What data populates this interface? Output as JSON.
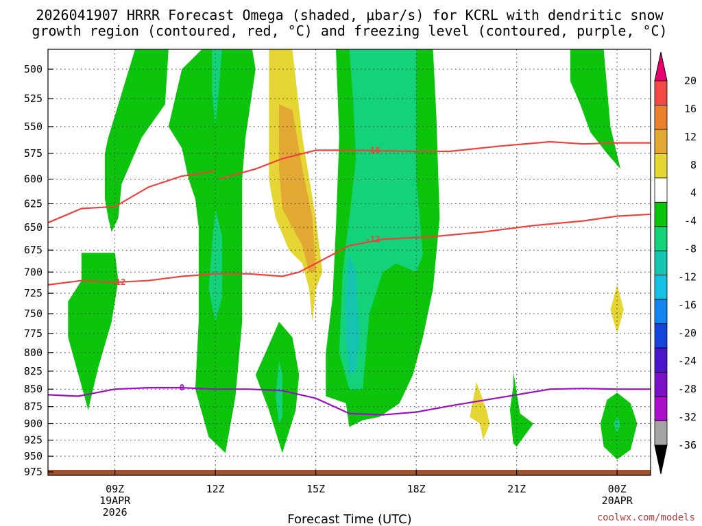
{
  "chart_data": {
    "type": "heatmap",
    "title_line1": "2026041907 HRRR Forecast Omega (shaded, μbar/s) for KCRL with dendritic snow",
    "title_line2": "growth region (contoured, red, °C) and freezing level (contoured, purple, °C)",
    "xlabel": "Forecast Time (UTC)",
    "watermark": "coolwx.com/models",
    "x_range_hours": [
      7,
      25
    ],
    "x_ticks": [
      {
        "h": 9,
        "label": "09Z",
        "sub1": "19APR",
        "sub2": "2026"
      },
      {
        "h": 12,
        "label": "12Z",
        "sub1": "",
        "sub2": ""
      },
      {
        "h": 15,
        "label": "15Z",
        "sub1": "",
        "sub2": ""
      },
      {
        "h": 18,
        "label": "18Z",
        "sub1": "",
        "sub2": ""
      },
      {
        "h": 21,
        "label": "21Z",
        "sub1": "",
        "sub2": ""
      },
      {
        "h": 24,
        "label": "00Z",
        "sub1": "20APR",
        "sub2": ""
      }
    ],
    "y_ticks_hPa": [
      500,
      525,
      550,
      575,
      600,
      625,
      650,
      675,
      700,
      725,
      750,
      775,
      800,
      825,
      850,
      875,
      900,
      925,
      950,
      975
    ],
    "colorbar": {
      "labels": [
        "20",
        "16",
        "12",
        "8",
        "4",
        "-4",
        "-8",
        "-12",
        "-16",
        "-20",
        "-24",
        "-28",
        "-32",
        "-36"
      ],
      "colors": [
        "#e8006e",
        "#f14a46",
        "#ea7f2e",
        "#e3a734",
        "#e6d633",
        "#ffffff",
        "#0bc40b",
        "#14d27a",
        "#15c3b1",
        "#16bfe4",
        "#1685f0",
        "#1444da",
        "#4b15c9",
        "#7b12c6",
        "#a90fc6",
        "#a3a3a3",
        "#000000"
      ]
    },
    "contours": [
      {
        "name": "-18",
        "color": "#f0403a",
        "label_h": 16.7,
        "points": [
          [
            12.1,
            600
          ],
          [
            13.2,
            590
          ],
          [
            14.0,
            580
          ],
          [
            15.0,
            572
          ],
          [
            16.0,
            572
          ],
          [
            18.0,
            573
          ],
          [
            19.0,
            573
          ],
          [
            20.5,
            568
          ],
          [
            22.0,
            564
          ],
          [
            23.0,
            566
          ],
          [
            24.0,
            565
          ],
          [
            25.0,
            565
          ]
        ]
      },
      {
        "name": "-12",
        "color": "#f0403a",
        "label_h": 16.7,
        "points": [
          [
            7.0,
            645
          ],
          [
            8.0,
            630
          ],
          [
            9.0,
            628
          ],
          [
            10.0,
            608
          ],
          [
            11.0,
            597
          ],
          [
            12.0,
            592
          ]
        ]
      },
      {
        "name": "-12",
        "color": "#f0403a",
        "label_h": 16.7,
        "points": [
          [
            15.0,
            690
          ],
          [
            16.0,
            670
          ],
          [
            17.0,
            663
          ],
          [
            18.5,
            660
          ],
          [
            20.0,
            655
          ],
          [
            21.5,
            648
          ],
          [
            23.0,
            643
          ],
          [
            24.0,
            638
          ],
          [
            25.0,
            636
          ]
        ]
      },
      {
        "name": "-12",
        "color": "#f0403a",
        "label_h": 9.1,
        "points": [
          [
            7.0,
            715
          ],
          [
            8.0,
            710
          ],
          [
            9.0,
            712
          ],
          [
            10.0,
            710
          ],
          [
            11.0,
            705
          ],
          [
            12.0,
            702
          ],
          [
            13.0,
            702
          ],
          [
            14.0,
            705
          ],
          [
            14.5,
            700
          ],
          [
            15.0,
            690
          ]
        ]
      },
      {
        "name": "0",
        "color": "#9b0ec6",
        "label_h": 11.0,
        "points": [
          [
            7.0,
            858
          ],
          [
            7.9,
            860
          ],
          [
            9.0,
            850
          ],
          [
            10.0,
            848
          ],
          [
            11.0,
            848
          ],
          [
            12.0,
            850
          ],
          [
            13.0,
            850
          ],
          [
            14.0,
            852
          ],
          [
            15.0,
            863
          ],
          [
            16.0,
            885
          ],
          [
            17.0,
            887
          ],
          [
            18.0,
            883
          ],
          [
            19.0,
            874
          ],
          [
            20.0,
            866
          ],
          [
            21.0,
            858
          ],
          [
            22.0,
            850
          ],
          [
            23.0,
            849
          ],
          [
            24.0,
            850
          ],
          [
            25.0,
            850
          ]
        ]
      }
    ],
    "omega_regions": [
      {
        "name": "green-left-upper",
        "level": "-4",
        "points": [
          [
            8.7,
            575
          ],
          [
            8.8,
            560
          ],
          [
            9.6,
            470
          ],
          [
            10.6,
            470
          ],
          [
            10.5,
            530
          ],
          [
            9.8,
            560
          ],
          [
            9.2,
            605
          ],
          [
            9.1,
            640
          ],
          [
            8.9,
            655
          ],
          [
            8.8,
            640
          ],
          [
            8.7,
            620
          ]
        ]
      },
      {
        "name": "green-left-lower",
        "level": "-4",
        "points": [
          [
            8.0,
            678
          ],
          [
            9.0,
            678
          ],
          [
            9.1,
            710
          ],
          [
            8.9,
            760
          ],
          [
            8.5,
            820
          ],
          [
            8.2,
            880
          ],
          [
            8.0,
            845
          ],
          [
            7.6,
            780
          ],
          [
            7.6,
            735
          ],
          [
            8.0,
            710
          ]
        ]
      },
      {
        "name": "green-12z-column",
        "level": "-4",
        "points": [
          [
            11.6,
            470
          ],
          [
            12.8,
            470
          ],
          [
            12.8,
            500
          ],
          [
            12.8,
            600
          ],
          [
            12.7,
            650
          ],
          [
            12.8,
            760
          ],
          [
            12.6,
            860
          ],
          [
            12.3,
            945
          ],
          [
            11.8,
            920
          ],
          [
            11.4,
            850
          ],
          [
            11.5,
            760
          ],
          [
            11.5,
            650
          ],
          [
            11.4,
            620
          ],
          [
            11.2,
            600
          ],
          [
            11.0,
            570
          ],
          [
            10.6,
            550
          ],
          [
            11.0,
            500
          ]
        ]
      },
      {
        "name": "green-13z",
        "level": "-4",
        "points": [
          [
            12.6,
            470
          ],
          [
            13.1,
            470
          ],
          [
            13.2,
            500
          ],
          [
            12.9,
            560
          ],
          [
            12.8,
            600
          ],
          [
            12.8,
            700
          ],
          [
            12.8,
            760
          ],
          [
            12.6,
            700
          ],
          [
            12.6,
            600
          ]
        ]
      },
      {
        "name": "green-14z-blob",
        "level": "-4",
        "points": [
          [
            13.5,
            800
          ],
          [
            13.9,
            760
          ],
          [
            14.3,
            780
          ],
          [
            14.5,
            830
          ],
          [
            14.4,
            880
          ],
          [
            14.0,
            945
          ],
          [
            13.6,
            880
          ],
          [
            13.2,
            830
          ]
        ]
      },
      {
        "name": "green-16z-column",
        "level": "-4",
        "points": [
          [
            15.6,
            470
          ],
          [
            18.5,
            470
          ],
          [
            18.6,
            540
          ],
          [
            18.7,
            640
          ],
          [
            18.5,
            720
          ],
          [
            18.2,
            780
          ],
          [
            17.9,
            830
          ],
          [
            17.5,
            870
          ],
          [
            16.9,
            890
          ],
          [
            16.4,
            895
          ],
          [
            16.0,
            905
          ],
          [
            15.9,
            870
          ],
          [
            15.3,
            860
          ],
          [
            15.3,
            800
          ],
          [
            15.5,
            730
          ],
          [
            15.6,
            650
          ],
          [
            15.7,
            560
          ]
        ]
      },
      {
        "name": "green-right-upper",
        "level": "-4",
        "points": [
          [
            22.6,
            470
          ],
          [
            23.6,
            470
          ],
          [
            23.8,
            550
          ],
          [
            24.1,
            590
          ],
          [
            23.7,
            575
          ],
          [
            23.2,
            555
          ],
          [
            22.9,
            530
          ],
          [
            22.6,
            510
          ]
        ]
      },
      {
        "name": "green-21z",
        "level": "-4",
        "points": [
          [
            20.9,
            825
          ],
          [
            21.1,
            885
          ],
          [
            21.5,
            900
          ],
          [
            21.0,
            935
          ],
          [
            20.9,
            930
          ],
          [
            20.8,
            880
          ],
          [
            20.9,
            845
          ]
        ]
      },
      {
        "name": "green-00z-blob",
        "level": "-4",
        "points": [
          [
            24.0,
            855
          ],
          [
            24.4,
            870
          ],
          [
            24.6,
            900
          ],
          [
            24.4,
            940
          ],
          [
            24.0,
            955
          ],
          [
            23.6,
            935
          ],
          [
            23.5,
            900
          ],
          [
            23.7,
            865
          ]
        ]
      },
      {
        "name": "teal-12z",
        "level": "-8",
        "points": [
          [
            11.9,
            470
          ],
          [
            12.2,
            470
          ],
          [
            12.1,
            520
          ],
          [
            12.0,
            550
          ],
          [
            11.9,
            520
          ]
        ]
      },
      {
        "name": "teal-12z-mid",
        "level": "-8",
        "points": [
          [
            12.0,
            630
          ],
          [
            12.2,
            660
          ],
          [
            12.2,
            730
          ],
          [
            12.0,
            760
          ],
          [
            11.8,
            720
          ],
          [
            11.9,
            670
          ]
        ]
      },
      {
        "name": "teal-16z",
        "level": "-8",
        "points": [
          [
            16.0,
            470
          ],
          [
            18.0,
            470
          ],
          [
            18.0,
            600
          ],
          [
            18.2,
            680
          ],
          [
            18.0,
            700
          ],
          [
            17.4,
            690
          ],
          [
            17.0,
            700
          ],
          [
            16.6,
            750
          ],
          [
            16.4,
            850
          ],
          [
            16.0,
            850
          ],
          [
            15.7,
            800
          ],
          [
            15.8,
            700
          ],
          [
            16.0,
            640
          ],
          [
            16.2,
            580
          ],
          [
            16.1,
            520
          ]
        ]
      },
      {
        "name": "teal-14z",
        "level": "-8",
        "points": [
          [
            13.9,
            810
          ],
          [
            14.0,
            830
          ],
          [
            14.0,
            890
          ],
          [
            13.9,
            900
          ],
          [
            13.8,
            860
          ]
        ]
      },
      {
        "name": "cyan-16z",
        "level": "-12",
        "points": [
          [
            16.0,
            680
          ],
          [
            16.2,
            700
          ],
          [
            16.3,
            780
          ],
          [
            16.2,
            825
          ],
          [
            16.0,
            830
          ],
          [
            15.9,
            780
          ],
          [
            15.9,
            720
          ]
        ]
      },
      {
        "name": "teal-00z",
        "level": "-8",
        "points": [
          [
            24.0,
            890
          ],
          [
            24.1,
            900
          ],
          [
            24.0,
            915
          ],
          [
            23.9,
            900
          ]
        ]
      },
      {
        "name": "yellow-14z",
        "level": "4",
        "points": [
          [
            13.6,
            480
          ],
          [
            14.3,
            470
          ],
          [
            14.6,
            560
          ],
          [
            15.0,
            640
          ],
          [
            15.2,
            700
          ],
          [
            15.0,
            720
          ],
          [
            14.9,
            760
          ],
          [
            14.8,
            720
          ],
          [
            14.6,
            690
          ],
          [
            14.2,
            675
          ],
          [
            13.8,
            640
          ],
          [
            13.6,
            600
          ],
          [
            13.6,
            530
          ]
        ]
      },
      {
        "name": "orange-14z",
        "level": "8",
        "points": [
          [
            13.9,
            530
          ],
          [
            14.3,
            535
          ],
          [
            14.6,
            590
          ],
          [
            14.9,
            640
          ],
          [
            15.0,
            700
          ],
          [
            14.8,
            700
          ],
          [
            14.6,
            670
          ],
          [
            14.3,
            650
          ],
          [
            14.0,
            630
          ],
          [
            13.9,
            590
          ]
        ]
      },
      {
        "name": "yellow-20z",
        "level": "4",
        "points": [
          [
            19.8,
            840
          ],
          [
            20.1,
            880
          ],
          [
            20.2,
            900
          ],
          [
            20.0,
            925
          ],
          [
            19.9,
            900
          ],
          [
            19.6,
            890
          ]
        ]
      },
      {
        "name": "yellow-24z",
        "level": "4",
        "points": [
          [
            24.0,
            715
          ],
          [
            24.2,
            745
          ],
          [
            24.1,
            760
          ],
          [
            24.0,
            775
          ],
          [
            23.8,
            745
          ]
        ]
      }
    ],
    "ground_band": "surface"
  }
}
